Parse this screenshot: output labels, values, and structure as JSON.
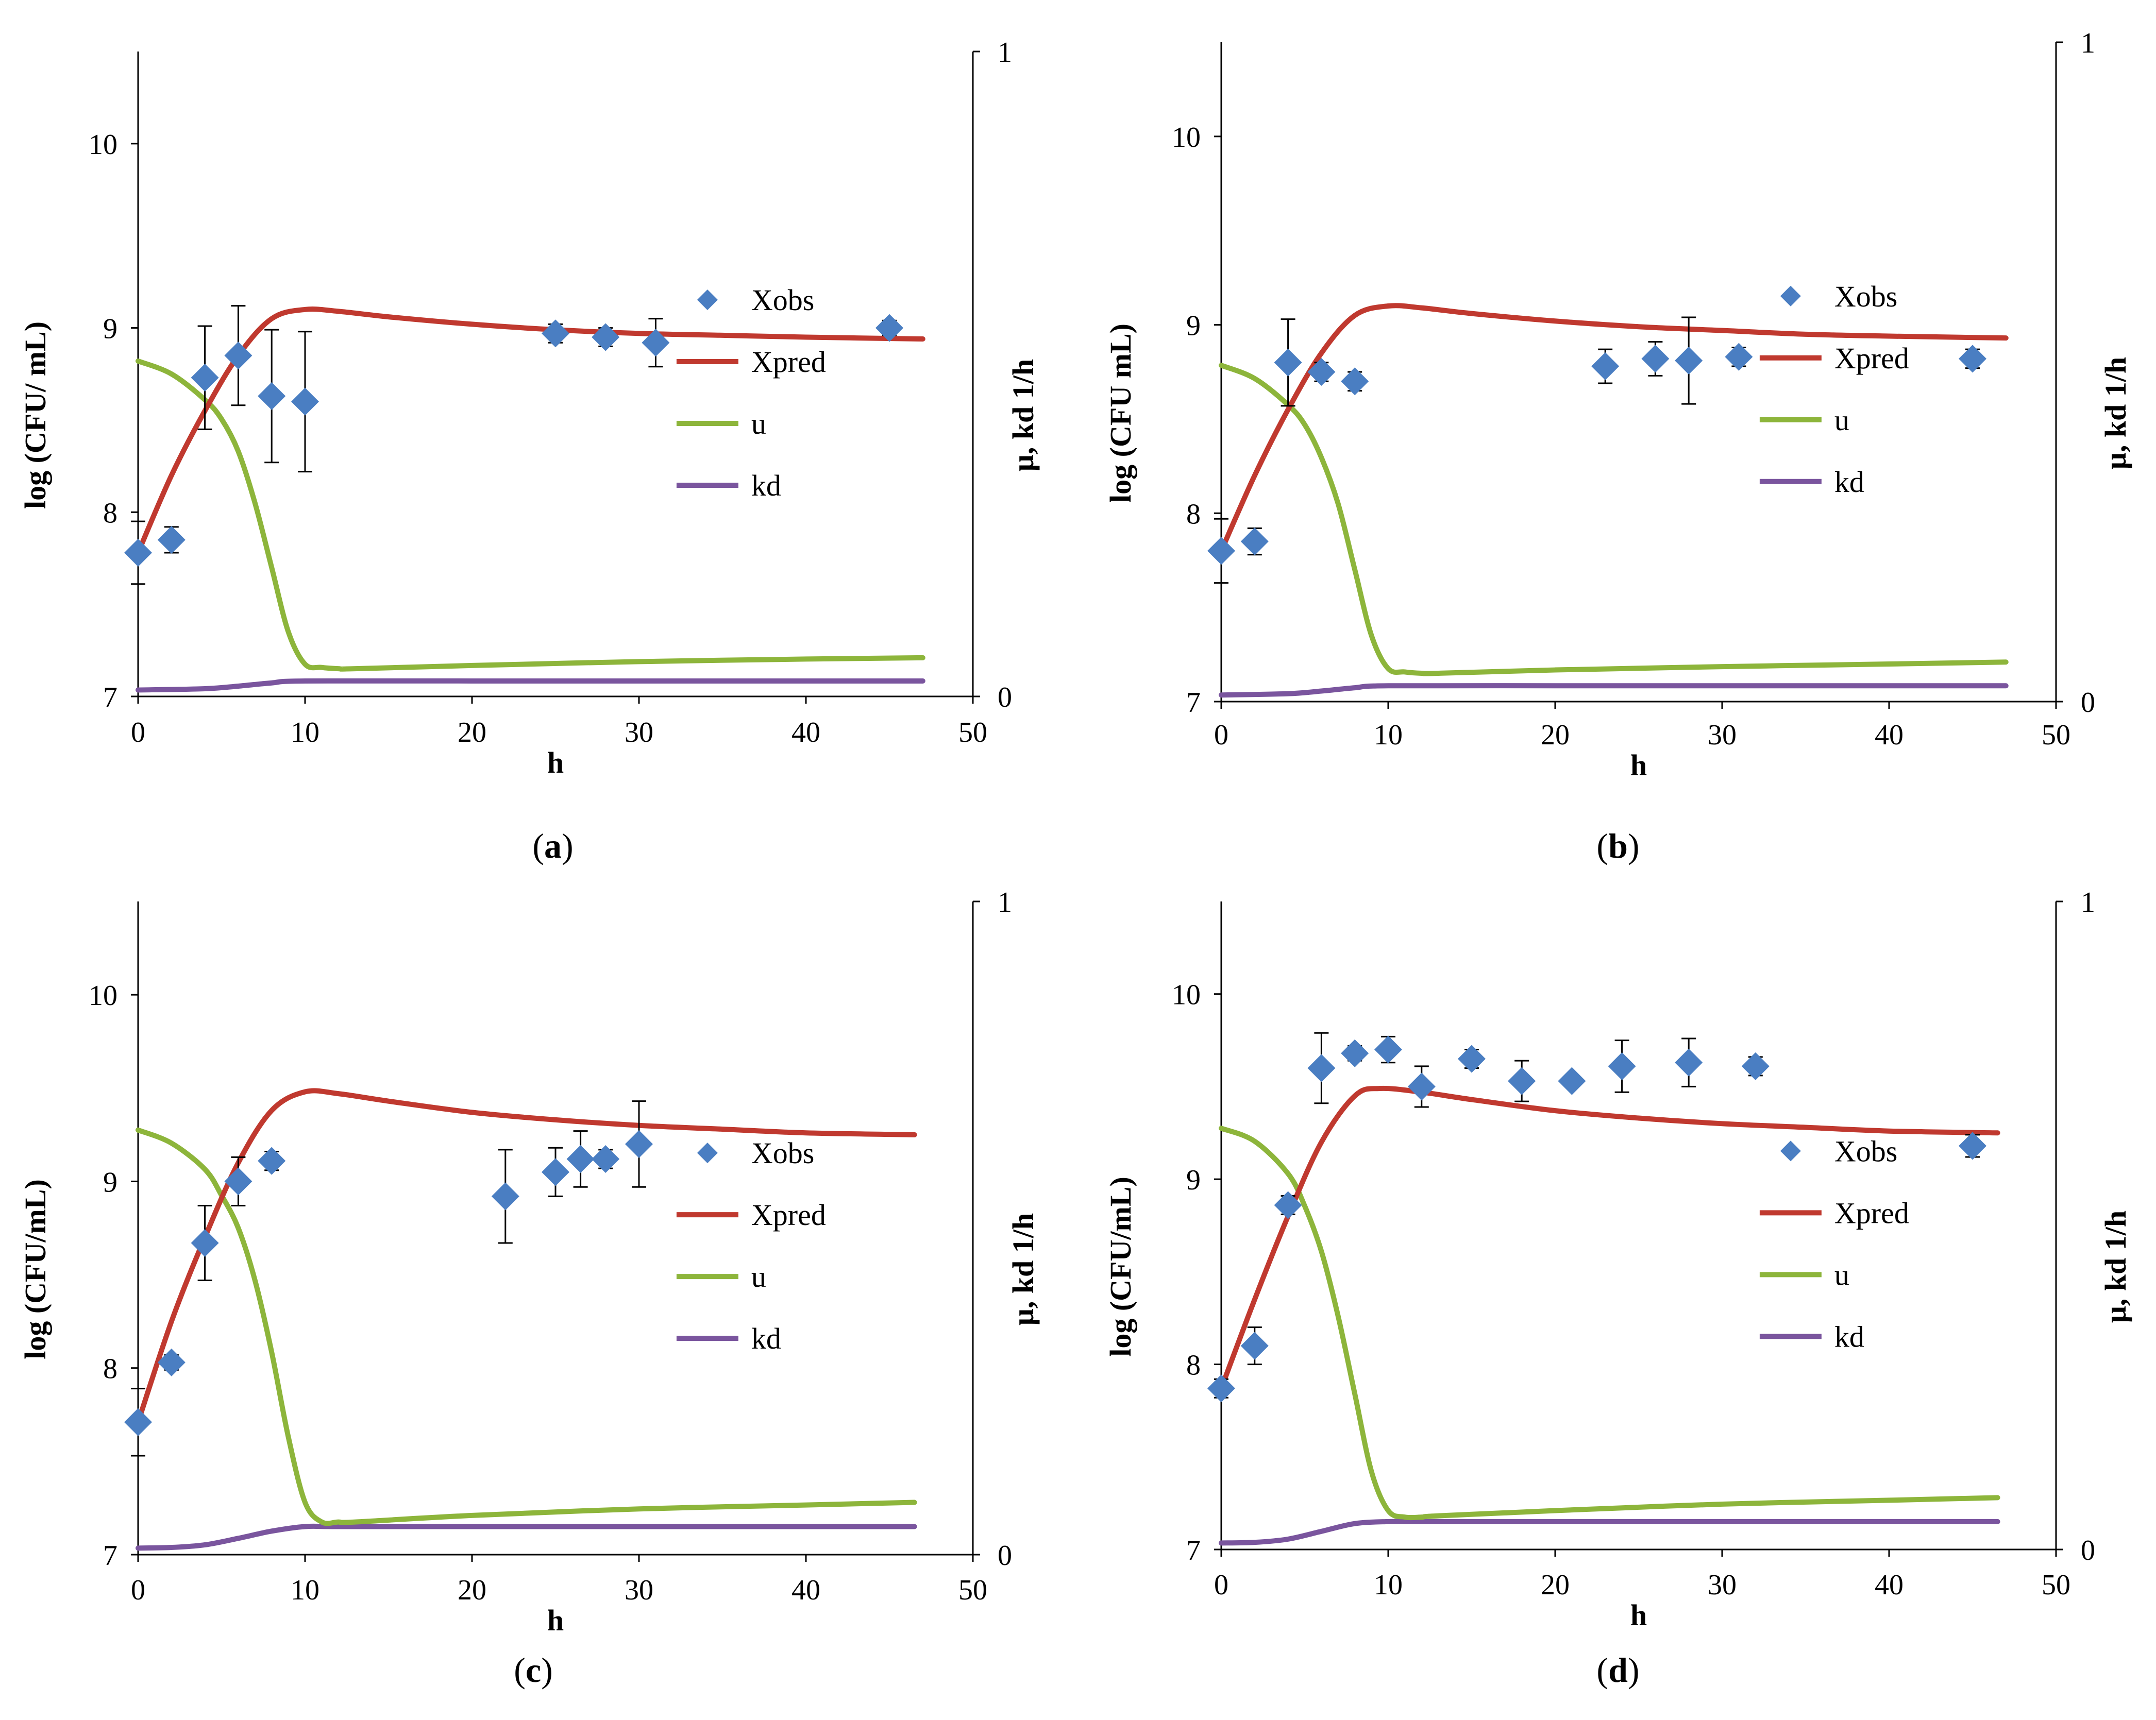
{
  "figure": {
    "panels": [
      "a",
      "b",
      "c",
      "d"
    ]
  },
  "colors": {
    "Xobs": "#4a7ec2",
    "Xpred": "#c0392f",
    "u": "#8db53b",
    "kd": "#7a559e",
    "axis": "#000000"
  },
  "chart_data": [
    {
      "panel": "a",
      "caption_open": "(",
      "caption_letter": "a",
      "caption_close": ")",
      "type": "scatter",
      "ylabel": "log (CFU/ mL)",
      "xlabel": "h",
      "y2label": "μ, kd   1/h",
      "xlim": [
        0,
        50
      ],
      "ylim": [
        7,
        10.5
      ],
      "y2lim": [
        0,
        1
      ],
      "xticks": [
        "0",
        "10",
        "20",
        "30",
        "40",
        "50"
      ],
      "yticks": [
        "7",
        "8",
        "9",
        "10"
      ],
      "y2ticks": [
        "0",
        "1"
      ],
      "legend": [
        "Xobs",
        "Xpred",
        "u",
        "kd"
      ],
      "Xobs": {
        "x": [
          0,
          2,
          4,
          6,
          8,
          10,
          25,
          28,
          31,
          45
        ],
        "y": [
          7.78,
          7.85,
          8.73,
          8.85,
          8.63,
          8.6,
          8.97,
          8.95,
          8.92,
          9.0
        ],
        "err": [
          0.17,
          0.07,
          0.28,
          0.27,
          0.36,
          0.38,
          0.05,
          0.05,
          0.13,
          0.04
        ]
      },
      "Xpred": {
        "x": [
          0,
          2,
          4,
          6,
          8,
          10,
          12,
          15,
          20,
          25,
          30,
          35,
          40,
          47
        ],
        "y": [
          7.78,
          8.2,
          8.55,
          8.85,
          9.05,
          9.1,
          9.09,
          9.06,
          9.02,
          8.99,
          8.97,
          8.96,
          8.95,
          8.94
        ]
      },
      "u": {
        "x": [
          0,
          2,
          4,
          5,
          6,
          7,
          8,
          9,
          10,
          11,
          12,
          13,
          20,
          30,
          40,
          47
        ],
        "y": [
          0.52,
          0.5,
          0.46,
          0.43,
          0.38,
          0.3,
          0.2,
          0.1,
          0.05,
          0.045,
          0.043,
          0.043,
          0.048,
          0.054,
          0.058,
          0.06
        ]
      },
      "kd": {
        "x": [
          0,
          4,
          6,
          8,
          10,
          20,
          30,
          40,
          47
        ],
        "y": [
          0.01,
          0.012,
          0.016,
          0.021,
          0.024,
          0.024,
          0.024,
          0.024,
          0.024
        ]
      }
    },
    {
      "panel": "b",
      "caption_open": "(",
      "caption_letter": "b",
      "caption_close": ")",
      "type": "scatter",
      "ylabel": "log (CFU mL)",
      "xlabel": "h",
      "y2label": "μ, kd   1/h",
      "xlim": [
        0,
        50
      ],
      "ylim": [
        7,
        10.5
      ],
      "y2lim": [
        0,
        1
      ],
      "xticks": [
        "0",
        "10",
        "20",
        "30",
        "40",
        "50"
      ],
      "yticks": [
        "7",
        "8",
        "9",
        "10"
      ],
      "y2ticks": [
        "0",
        "1"
      ],
      "legend": [
        "Xobs",
        "Xpred",
        "u",
        "kd"
      ],
      "Xobs": {
        "x": [
          0,
          2,
          4,
          6,
          8,
          23,
          26,
          28,
          31,
          45
        ],
        "y": [
          7.8,
          7.85,
          8.8,
          8.75,
          8.7,
          8.78,
          8.82,
          8.81,
          8.83,
          8.82
        ],
        "err": [
          0.17,
          0.07,
          0.23,
          0.05,
          0.05,
          0.09,
          0.09,
          0.23,
          0.05,
          0.05
        ]
      },
      "Xpred": {
        "x": [
          0,
          2,
          4,
          6,
          8,
          10,
          12,
          15,
          20,
          25,
          30,
          35,
          40,
          47
        ],
        "y": [
          7.8,
          8.2,
          8.55,
          8.85,
          9.05,
          9.1,
          9.09,
          9.06,
          9.02,
          8.99,
          8.97,
          8.95,
          8.94,
          8.93
        ]
      },
      "u": {
        "x": [
          0,
          2,
          4,
          5,
          6,
          7,
          8,
          9,
          10,
          11,
          12,
          13,
          20,
          30,
          40,
          47
        ],
        "y": [
          0.51,
          0.49,
          0.45,
          0.42,
          0.37,
          0.3,
          0.2,
          0.1,
          0.05,
          0.045,
          0.043,
          0.043,
          0.048,
          0.053,
          0.057,
          0.06
        ]
      },
      "kd": {
        "x": [
          0,
          4,
          6,
          8,
          10,
          20,
          30,
          40,
          47
        ],
        "y": [
          0.01,
          0.012,
          0.016,
          0.021,
          0.024,
          0.024,
          0.024,
          0.024,
          0.024
        ]
      }
    },
    {
      "panel": "c",
      "caption_open": "(",
      "caption_letter": "c",
      "caption_close": ")",
      "type": "scatter",
      "ylabel": "log (CFU/mL)",
      "xlabel": "h",
      "y2label": "μ, kd   1/h",
      "xlim": [
        0,
        50
      ],
      "ylim": [
        7,
        10.5
      ],
      "y2lim": [
        0,
        1
      ],
      "xticks": [
        "0",
        "10",
        "20",
        "30",
        "40",
        "50"
      ],
      "yticks": [
        "7",
        "8",
        "9",
        "10"
      ],
      "y2ticks": [
        "0",
        "1"
      ],
      "legend": [
        "Xobs",
        "Xpred",
        "u",
        "kd"
      ],
      "Xobs": {
        "x": [
          0,
          2,
          4,
          6,
          8,
          22,
          25,
          26.5,
          28,
          30
        ],
        "y": [
          7.71,
          8.03,
          8.67,
          9.0,
          9.11,
          8.92,
          9.05,
          9.12,
          9.12,
          9.2
        ],
        "err": [
          0.18,
          0.04,
          0.2,
          0.13,
          0.05,
          0.25,
          0.13,
          0.15,
          0.05,
          0.23
        ]
      },
      "Xpred": {
        "x": [
          0,
          2,
          4,
          6,
          8,
          10,
          12,
          15,
          20,
          25,
          30,
          35,
          40,
          46.5
        ],
        "y": [
          7.71,
          8.25,
          8.7,
          9.1,
          9.38,
          9.48,
          9.47,
          9.43,
          9.37,
          9.33,
          9.3,
          9.28,
          9.26,
          9.25
        ]
      },
      "u": {
        "x": [
          0,
          2,
          4,
          5,
          6,
          7,
          8,
          9,
          10,
          11,
          12,
          13,
          20,
          30,
          40,
          46.5
        ],
        "y": [
          0.65,
          0.63,
          0.59,
          0.55,
          0.5,
          0.42,
          0.31,
          0.18,
          0.08,
          0.05,
          0.05,
          0.05,
          0.06,
          0.07,
          0.076,
          0.08
        ]
      },
      "kd": {
        "x": [
          0,
          2,
          4,
          6,
          8,
          10,
          12,
          20,
          30,
          40,
          46.5
        ],
        "y": [
          0.01,
          0.011,
          0.015,
          0.025,
          0.036,
          0.043,
          0.043,
          0.043,
          0.043,
          0.043,
          0.043
        ]
      }
    },
    {
      "panel": "d",
      "caption_open": "(",
      "caption_letter": "d",
      "caption_close": ")",
      "type": "scatter",
      "ylabel": "log (CFU/mL)",
      "xlabel": "h",
      "y2label": "μ, kd   1/h",
      "xlim": [
        0,
        50
      ],
      "ylim": [
        7,
        10.5
      ],
      "y2lim": [
        0,
        1
      ],
      "xticks": [
        "0",
        "10",
        "20",
        "30",
        "40",
        "50"
      ],
      "yticks": [
        "7",
        "8",
        "9",
        "10"
      ],
      "y2ticks": [
        "0",
        "1"
      ],
      "legend": [
        "Xobs",
        "Xpred",
        "u",
        "kd"
      ],
      "Xobs": {
        "x": [
          0,
          2,
          4,
          6,
          8,
          10,
          12,
          15,
          18,
          21,
          24,
          28,
          32,
          45
        ],
        "y": [
          7.87,
          8.1,
          8.86,
          9.6,
          9.68,
          9.7,
          9.5,
          9.65,
          9.53,
          9.53,
          9.61,
          9.63,
          9.61,
          9.18
        ],
        "err": [
          0.05,
          0.1,
          0.05,
          0.19,
          0.04,
          0.07,
          0.11,
          0.05,
          0.11,
          0.03,
          0.14,
          0.13,
          0.05,
          0.06
        ]
      },
      "Xpred": {
        "x": [
          0,
          2,
          4,
          6,
          8,
          9.5,
          12,
          15,
          20,
          25,
          30,
          35,
          40,
          46.5
        ],
        "y": [
          7.87,
          8.35,
          8.8,
          9.2,
          9.45,
          9.49,
          9.47,
          9.43,
          9.37,
          9.33,
          9.3,
          9.28,
          9.26,
          9.25
        ]
      },
      "u": {
        "x": [
          0,
          2,
          4,
          5,
          6,
          7,
          8,
          9,
          10,
          11,
          12,
          13,
          20,
          30,
          40,
          46.5
        ],
        "y": [
          0.65,
          0.63,
          0.58,
          0.53,
          0.46,
          0.36,
          0.24,
          0.12,
          0.06,
          0.05,
          0.05,
          0.052,
          0.06,
          0.07,
          0.076,
          0.08
        ]
      },
      "kd": {
        "x": [
          0,
          2,
          4,
          6,
          8,
          10,
          12,
          20,
          30,
          40,
          46.5
        ],
        "y": [
          0.01,
          0.011,
          0.016,
          0.028,
          0.04,
          0.043,
          0.043,
          0.043,
          0.043,
          0.043,
          0.043
        ]
      }
    }
  ]
}
